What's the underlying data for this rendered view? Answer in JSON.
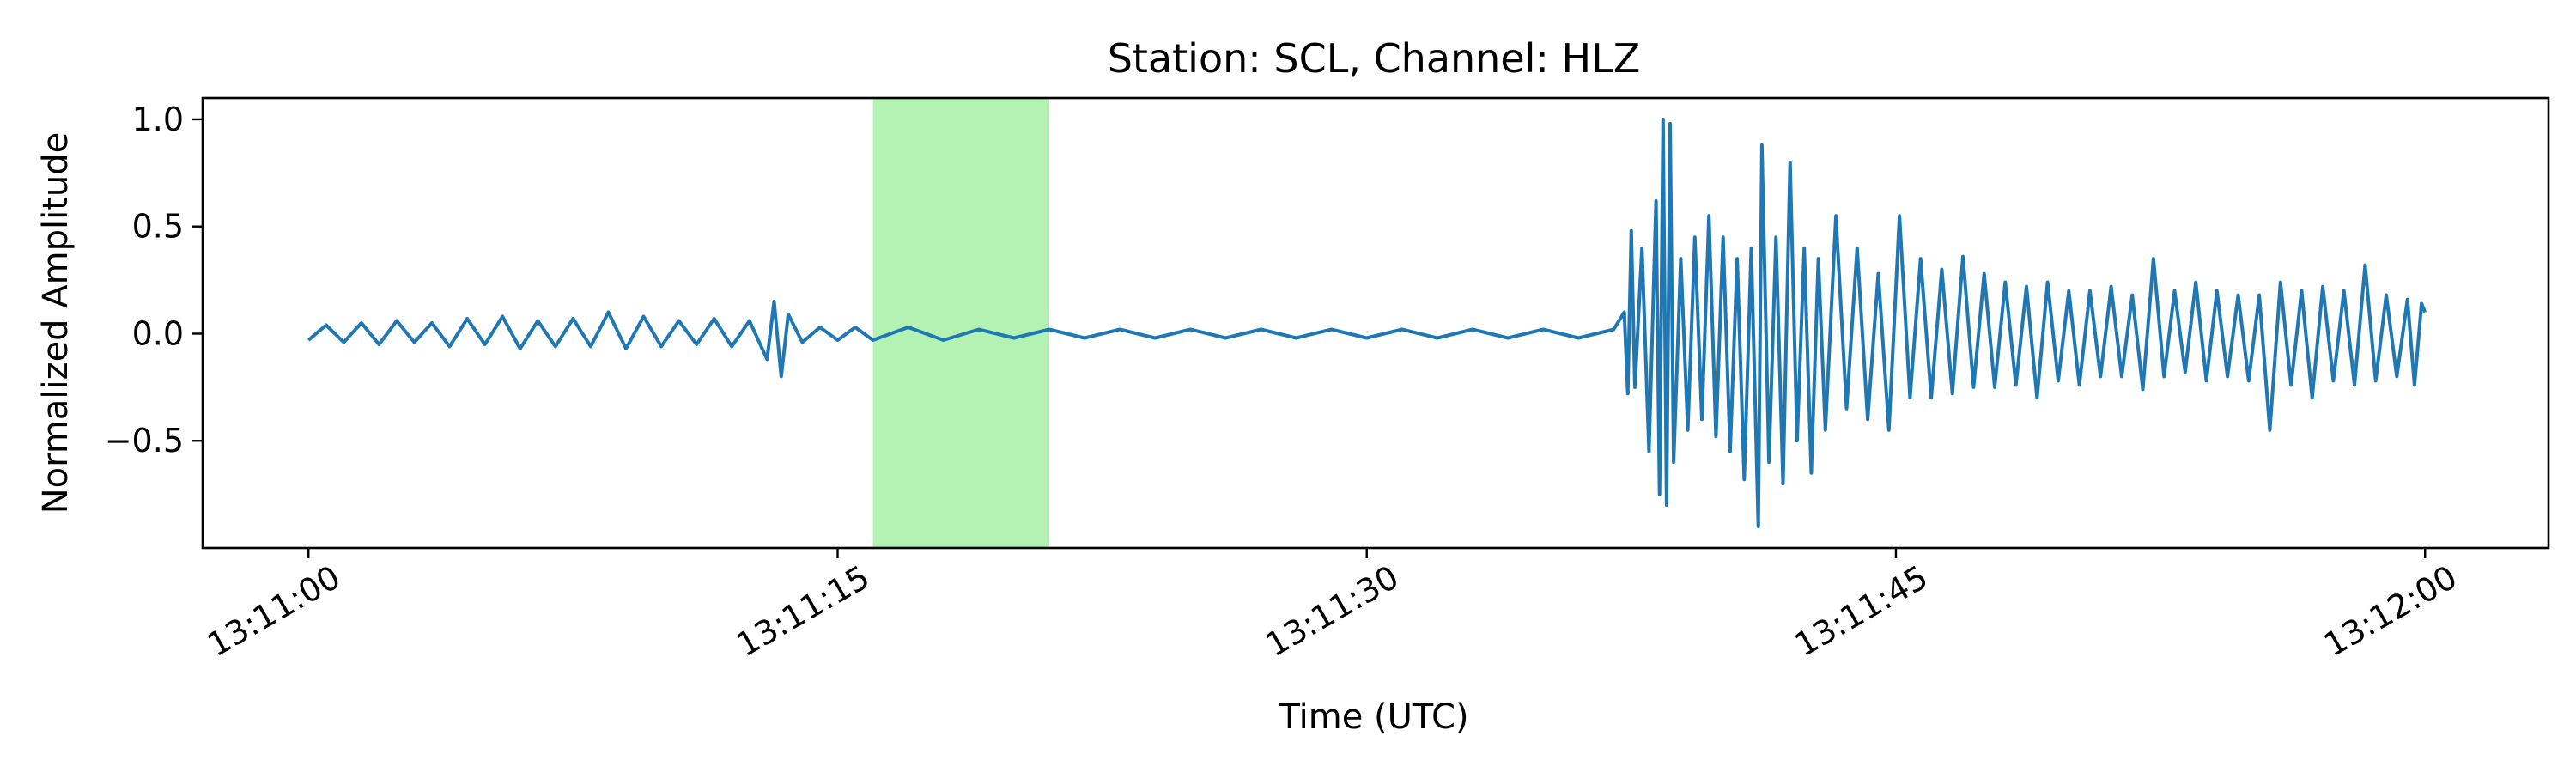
{
  "chart_data": {
    "type": "line",
    "title": "Station: SCL, Channel: HLZ",
    "xlabel": "Time (UTC)",
    "ylabel": "Normalized Amplitude",
    "x_unit": "seconds after 13:11:00",
    "x_ticks": [
      {
        "value": 0,
        "label": "13:11:00"
      },
      {
        "value": 15,
        "label": "13:11:15"
      },
      {
        "value": 30,
        "label": "13:11:30"
      },
      {
        "value": 45,
        "label": "13:11:45"
      },
      {
        "value": 60,
        "label": "13:12:00"
      }
    ],
    "y_ticks": [
      {
        "value": 1.0,
        "label": "1.0"
      },
      {
        "value": 0.5,
        "label": "0.5"
      },
      {
        "value": 0.0,
        "label": "0.0"
      },
      {
        "value": -0.5,
        "label": "−0.5"
      }
    ],
    "xlim": [
      -3,
      63.5
    ],
    "ylim": [
      -1.0,
      1.1
    ],
    "grid": false,
    "series_color": "#1f77b4",
    "highlight": {
      "x_start": 16.0,
      "x_end": 21.0,
      "color": "#b3f2b3"
    },
    "series": [
      {
        "values": [
          [
            0.0,
            -0.03
          ],
          [
            0.5,
            0.04
          ],
          [
            1.0,
            -0.04
          ],
          [
            1.5,
            0.05
          ],
          [
            2.0,
            -0.05
          ],
          [
            2.5,
            0.06
          ],
          [
            3.0,
            -0.04
          ],
          [
            3.5,
            0.05
          ],
          [
            4.0,
            -0.06
          ],
          [
            4.5,
            0.07
          ],
          [
            5.0,
            -0.05
          ],
          [
            5.5,
            0.08
          ],
          [
            6.0,
            -0.07
          ],
          [
            6.5,
            0.06
          ],
          [
            7.0,
            -0.06
          ],
          [
            7.5,
            0.07
          ],
          [
            8.0,
            -0.06
          ],
          [
            8.5,
            0.1
          ],
          [
            9.0,
            -0.07
          ],
          [
            9.5,
            0.08
          ],
          [
            10.0,
            -0.06
          ],
          [
            10.5,
            0.06
          ],
          [
            11.0,
            -0.05
          ],
          [
            11.5,
            0.07
          ],
          [
            12.0,
            -0.06
          ],
          [
            12.5,
            0.06
          ],
          [
            13.0,
            -0.12
          ],
          [
            13.2,
            0.15
          ],
          [
            13.4,
            -0.2
          ],
          [
            13.6,
            0.09
          ],
          [
            14.0,
            -0.04
          ],
          [
            14.5,
            0.03
          ],
          [
            15.0,
            -0.03
          ],
          [
            15.5,
            0.03
          ],
          [
            16.0,
            -0.03
          ],
          [
            17.0,
            0.03
          ],
          [
            18.0,
            -0.03
          ],
          [
            19.0,
            0.02
          ],
          [
            20.0,
            -0.02
          ],
          [
            21.0,
            0.02
          ],
          [
            22.0,
            -0.02
          ],
          [
            23.0,
            0.02
          ],
          [
            24.0,
            -0.02
          ],
          [
            25.0,
            0.02
          ],
          [
            26.0,
            -0.02
          ],
          [
            27.0,
            0.02
          ],
          [
            28.0,
            -0.02
          ],
          [
            29.0,
            0.02
          ],
          [
            30.0,
            -0.02
          ],
          [
            31.0,
            0.02
          ],
          [
            32.0,
            -0.02
          ],
          [
            33.0,
            0.02
          ],
          [
            34.0,
            -0.02
          ],
          [
            35.0,
            0.02
          ],
          [
            36.0,
            -0.02
          ],
          [
            37.0,
            0.02
          ],
          [
            37.3,
            0.1
          ],
          [
            37.4,
            -0.28
          ],
          [
            37.5,
            0.48
          ],
          [
            37.6,
            -0.25
          ],
          [
            37.8,
            0.4
          ],
          [
            38.0,
            -0.55
          ],
          [
            38.2,
            0.62
          ],
          [
            38.3,
            -0.75
          ],
          [
            38.4,
            1.0
          ],
          [
            38.5,
            -0.8
          ],
          [
            38.6,
            0.98
          ],
          [
            38.7,
            -0.6
          ],
          [
            38.9,
            0.35
          ],
          [
            39.1,
            -0.45
          ],
          [
            39.3,
            0.45
          ],
          [
            39.5,
            -0.4
          ],
          [
            39.7,
            0.55
          ],
          [
            39.9,
            -0.48
          ],
          [
            40.1,
            0.45
          ],
          [
            40.3,
            -0.55
          ],
          [
            40.5,
            0.35
          ],
          [
            40.7,
            -0.68
          ],
          [
            40.9,
            0.4
          ],
          [
            41.1,
            -0.9
          ],
          [
            41.2,
            0.88
          ],
          [
            41.4,
            -0.6
          ],
          [
            41.6,
            0.45
          ],
          [
            41.8,
            -0.7
          ],
          [
            42.0,
            0.8
          ],
          [
            42.2,
            -0.5
          ],
          [
            42.4,
            0.4
          ],
          [
            42.6,
            -0.65
          ],
          [
            42.8,
            0.35
          ],
          [
            43.0,
            -0.45
          ],
          [
            43.3,
            0.55
          ],
          [
            43.6,
            -0.35
          ],
          [
            43.9,
            0.4
          ],
          [
            44.2,
            -0.4
          ],
          [
            44.5,
            0.28
          ],
          [
            44.8,
            -0.45
          ],
          [
            45.1,
            0.55
          ],
          [
            45.4,
            -0.3
          ],
          [
            45.7,
            0.35
          ],
          [
            46.0,
            -0.3
          ],
          [
            46.3,
            0.3
          ],
          [
            46.6,
            -0.28
          ],
          [
            46.9,
            0.36
          ],
          [
            47.2,
            -0.25
          ],
          [
            47.5,
            0.28
          ],
          [
            47.8,
            -0.25
          ],
          [
            48.1,
            0.24
          ],
          [
            48.4,
            -0.24
          ],
          [
            48.7,
            0.22
          ],
          [
            49.0,
            -0.3
          ],
          [
            49.3,
            0.24
          ],
          [
            49.6,
            -0.22
          ],
          [
            49.9,
            0.2
          ],
          [
            50.2,
            -0.24
          ],
          [
            50.5,
            0.2
          ],
          [
            50.8,
            -0.2
          ],
          [
            51.1,
            0.22
          ],
          [
            51.4,
            -0.2
          ],
          [
            51.7,
            0.18
          ],
          [
            52.0,
            -0.26
          ],
          [
            52.3,
            0.35
          ],
          [
            52.6,
            -0.2
          ],
          [
            52.9,
            0.2
          ],
          [
            53.2,
            -0.18
          ],
          [
            53.5,
            0.24
          ],
          [
            53.8,
            -0.22
          ],
          [
            54.1,
            0.2
          ],
          [
            54.4,
            -0.2
          ],
          [
            54.7,
            0.18
          ],
          [
            55.0,
            -0.22
          ],
          [
            55.3,
            0.18
          ],
          [
            55.6,
            -0.45
          ],
          [
            55.9,
            0.24
          ],
          [
            56.2,
            -0.24
          ],
          [
            56.5,
            0.2
          ],
          [
            56.8,
            -0.3
          ],
          [
            57.1,
            0.22
          ],
          [
            57.4,
            -0.22
          ],
          [
            57.7,
            0.2
          ],
          [
            58.0,
            -0.24
          ],
          [
            58.3,
            0.32
          ],
          [
            58.6,
            -0.22
          ],
          [
            58.9,
            0.18
          ],
          [
            59.2,
            -0.2
          ],
          [
            59.5,
            0.16
          ],
          [
            59.7,
            -0.24
          ],
          [
            59.9,
            0.14
          ],
          [
            60.0,
            0.1
          ]
        ]
      }
    ]
  }
}
